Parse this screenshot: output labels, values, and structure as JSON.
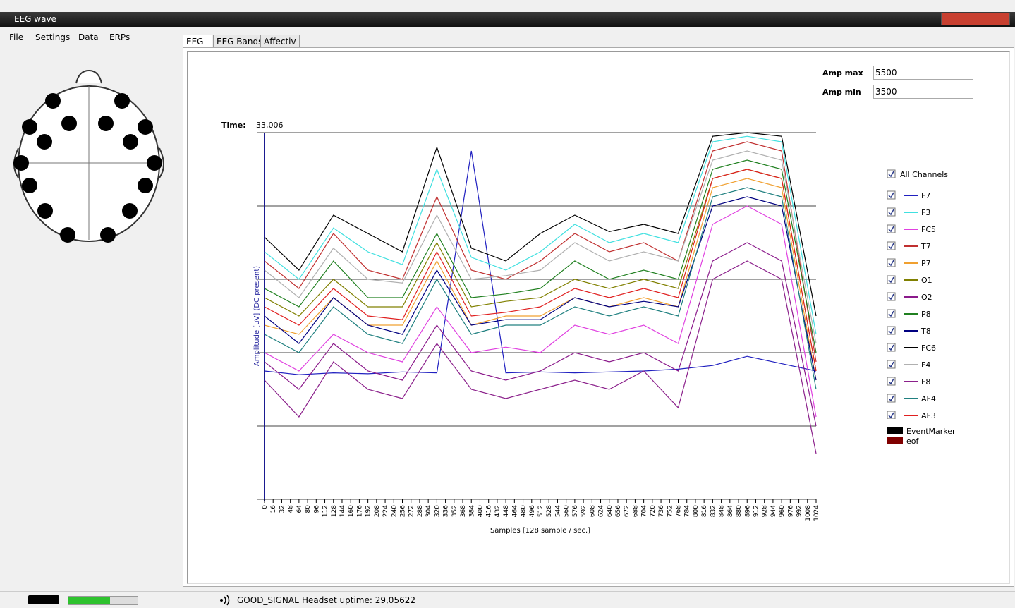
{
  "window": {
    "title": "EEG wave"
  },
  "menu": [
    "File",
    "Settings",
    "Data",
    "ERPs"
  ],
  "tabs": [
    "EEG",
    "EEG Bands",
    "Affectiv"
  ],
  "controls": {
    "amp_max_label": "Amp max",
    "amp_min_label": "Amp min",
    "time_label": "Time:",
    "time_value": "33,006"
  },
  "legend": {
    "all_label": "All Channels",
    "markers": [
      {
        "name": "EventMarker",
        "color": "#000000"
      },
      {
        "name": "eof",
        "color": "#800000"
      }
    ]
  },
  "status": {
    "signal": "GOOD_SIGNAL",
    "uptime": "Headset uptime: 29,05622"
  },
  "chart_data": {
    "type": "line",
    "y_label": "Amplitude [uV] (DC present)",
    "x_label": "Samples [128 sample / sec.]",
    "ylim": [
      3500,
      5500
    ],
    "hlines": [
      5500,
      5100,
      4700,
      4300,
      3900,
      3500
    ],
    "xlim": [
      0,
      1024
    ],
    "xticks": [
      0,
      16,
      32,
      48,
      64,
      80,
      96,
      112,
      128,
      144,
      160,
      176,
      192,
      208,
      224,
      240,
      256,
      272,
      288,
      304,
      320,
      336,
      352,
      368,
      384,
      400,
      416,
      432,
      448,
      464,
      480,
      496,
      512,
      528,
      544,
      560,
      576,
      592,
      608,
      624,
      640,
      656,
      672,
      688,
      704,
      720,
      736,
      752,
      768,
      784,
      800,
      816,
      832,
      848,
      864,
      880,
      896,
      912,
      928,
      944,
      960,
      976,
      992,
      1008,
      1024
    ],
    "x": [
      0,
      64,
      128,
      192,
      256,
      320,
      384,
      448,
      512,
      576,
      640,
      704,
      768,
      832,
      896,
      960,
      1024
    ],
    "series": [
      {
        "name": "F7",
        "color": "#2020c0",
        "values": [
          4200,
          4180,
          4190,
          4185,
          4195,
          4190,
          5400,
          4190,
          4195,
          4190,
          4195,
          4200,
          4210,
          4230,
          4280,
          4240,
          4200
        ]
      },
      {
        "name": "F3",
        "color": "#40e0e0",
        "values": [
          4850,
          4700,
          4980,
          4850,
          4780,
          5300,
          4820,
          4750,
          4850,
          5000,
          4900,
          4950,
          4900,
          5450,
          5480,
          5450,
          4400
        ]
      },
      {
        "name": "FC5",
        "color": "#e040e0",
        "values": [
          4300,
          4200,
          4400,
          4300,
          4250,
          4550,
          4300,
          4330,
          4300,
          4450,
          4400,
          4450,
          4350,
          5000,
          5100,
          5000,
          3950
        ]
      },
      {
        "name": "T7",
        "color": "#c03030",
        "values": [
          4800,
          4650,
          4950,
          4750,
          4700,
          5150,
          4750,
          4700,
          4800,
          4950,
          4850,
          4900,
          4800,
          5400,
          5450,
          5400,
          4250
        ]
      },
      {
        "name": "P7",
        "color": "#f0a030",
        "values": [
          4450,
          4400,
          4600,
          4450,
          4450,
          4800,
          4450,
          4500,
          4500,
          4600,
          4550,
          4600,
          4550,
          5200,
          5250,
          5200,
          4150
        ]
      },
      {
        "name": "O1",
        "color": "#808000",
        "values": [
          4600,
          4500,
          4700,
          4550,
          4550,
          4900,
          4550,
          4580,
          4600,
          4700,
          4650,
          4700,
          4650,
          5250,
          5300,
          5250,
          4200
        ]
      },
      {
        "name": "O2",
        "color": "#8b1a8b",
        "values": [
          4250,
          4100,
          4350,
          4200,
          4150,
          4450,
          4200,
          4150,
          4200,
          4300,
          4250,
          4300,
          4200,
          4800,
          4900,
          4800,
          3900
        ]
      },
      {
        "name": "P8",
        "color": "#208020",
        "values": [
          4650,
          4550,
          4800,
          4600,
          4600,
          4950,
          4600,
          4620,
          4650,
          4800,
          4700,
          4750,
          4700,
          5300,
          5350,
          5300,
          4300
        ]
      },
      {
        "name": "T8",
        "color": "#000080",
        "values": [
          4500,
          4350,
          4600,
          4450,
          4400,
          4750,
          4450,
          4480,
          4480,
          4600,
          4550,
          4580,
          4550,
          5100,
          5150,
          5100,
          4150
        ]
      },
      {
        "name": "FC6",
        "color": "#000000",
        "values": [
          4930,
          4750,
          5050,
          4950,
          4850,
          5420,
          4870,
          4800,
          4950,
          5050,
          4960,
          5000,
          4950,
          5480,
          5500,
          5480,
          4500
        ]
      },
      {
        "name": "F4",
        "color": "#b0b0b0",
        "values": [
          4750,
          4600,
          4870,
          4700,
          4680,
          5050,
          4700,
          4720,
          4750,
          4900,
          4800,
          4850,
          4800,
          5350,
          5400,
          5350,
          4350
        ]
      },
      {
        "name": "F8",
        "color": "#8b208b",
        "values": [
          4150,
          3950,
          4250,
          4100,
          4050,
          4350,
          4100,
          4050,
          4100,
          4150,
          4100,
          4200,
          4000,
          4700,
          4800,
          4700,
          3750
        ]
      },
      {
        "name": "AF4",
        "color": "#208080",
        "values": [
          4400,
          4300,
          4550,
          4400,
          4350,
          4700,
          4400,
          4450,
          4450,
          4550,
          4500,
          4550,
          4500,
          5150,
          5200,
          5150,
          4100
        ]
      },
      {
        "name": "AF3",
        "color": "#e02020",
        "values": [
          4550,
          4450,
          4650,
          4500,
          4480,
          4850,
          4500,
          4520,
          4550,
          4650,
          4600,
          4650,
          4600,
          5250,
          5300,
          5250,
          4200
        ]
      }
    ]
  }
}
